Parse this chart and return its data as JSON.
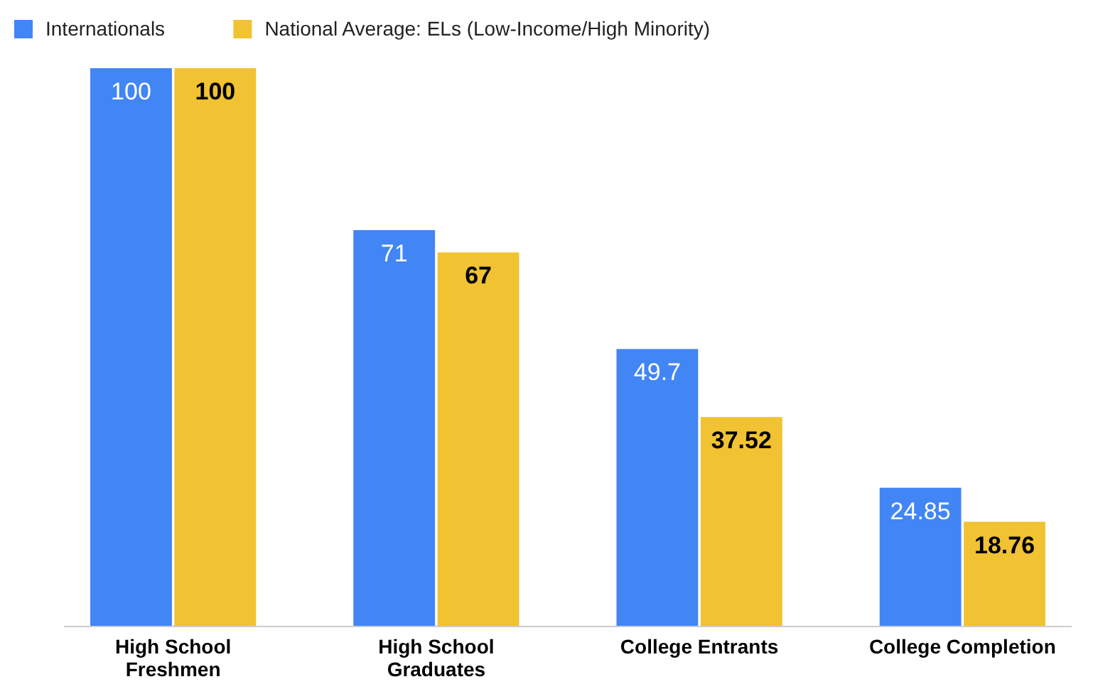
{
  "chart_data": {
    "type": "bar",
    "categories": [
      "High School Freshmen",
      "High School Graduates",
      "College Entrants",
      "College Completion"
    ],
    "series": [
      {
        "name": "Internationals",
        "color": "#4285f4",
        "values": [
          100,
          71,
          49.7,
          24.85
        ]
      },
      {
        "name": "National Average: ELs (Low-Income/High Minority)",
        "color": "#f1c232",
        "values": [
          100,
          67,
          37.52,
          18.76
        ]
      }
    ],
    "data_labels": true,
    "legend": "top left"
  }
}
